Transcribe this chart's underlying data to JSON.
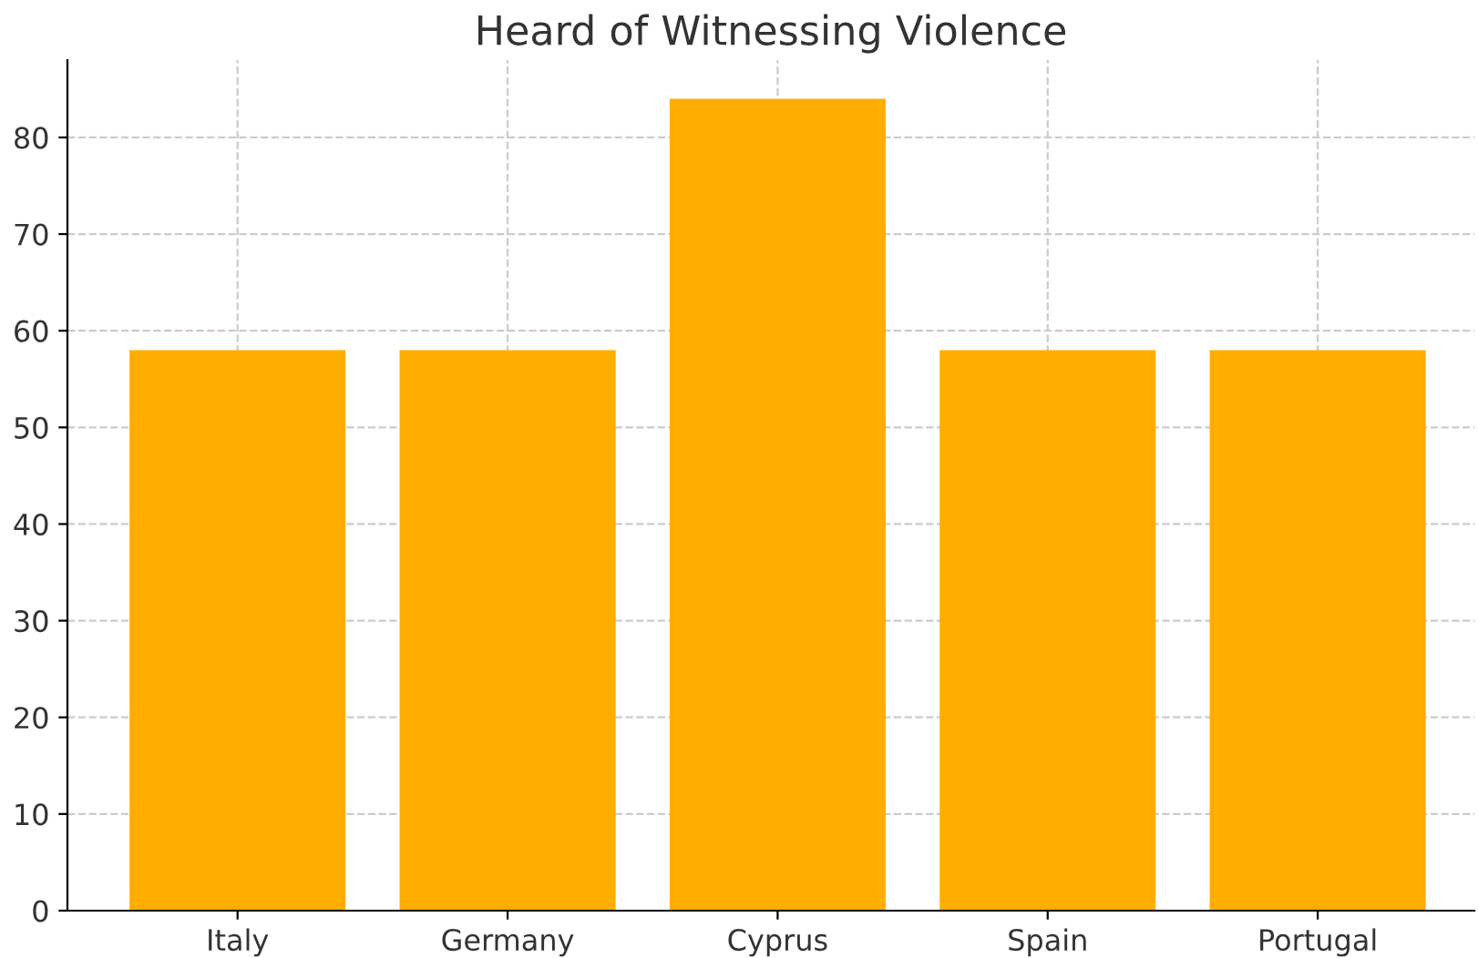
{
  "chart_data": {
    "type": "bar",
    "title": "Heard of Witnessing Violence",
    "categories": [
      "Italy",
      "Germany",
      "Cyprus",
      "Spain",
      "Portugal"
    ],
    "values": [
      58,
      58,
      84,
      58,
      58
    ],
    "color": "#ffae00",
    "ylim": [
      0,
      88
    ],
    "yticks": [
      0,
      10,
      20,
      30,
      40,
      50,
      60,
      70,
      80
    ],
    "grid": true
  }
}
